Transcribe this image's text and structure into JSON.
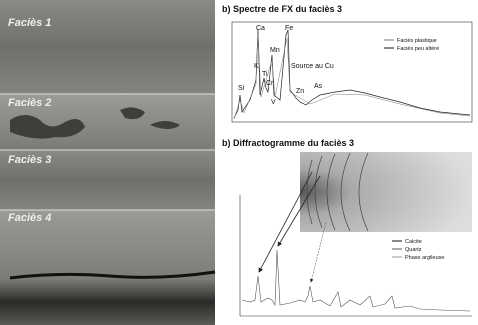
{
  "photos": {
    "labels": [
      "Faciès 1",
      "Faciès 2",
      "Faciès 3",
      "Faciès 4"
    ]
  },
  "spectrum": {
    "title": "b) Spectre de FX du faciès 3",
    "legend": [
      "Faciès plastique",
      "Faciès peu altéré"
    ],
    "peaks": [
      "Ca",
      "Fe",
      "Mn",
      "K",
      "Ti",
      "Cr",
      "V",
      "Si",
      "Zn",
      "As",
      "Source au Cu"
    ]
  },
  "diffractogram": {
    "title": "b) Diffractogramme du faciès 3",
    "legend": [
      "Calcite",
      "Quartz",
      "Phase argileuse"
    ]
  }
}
